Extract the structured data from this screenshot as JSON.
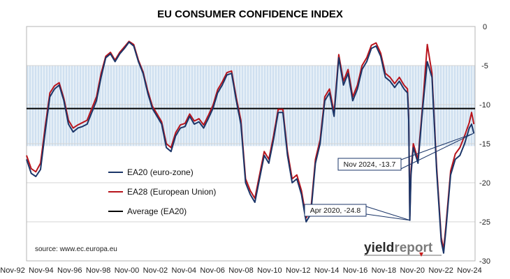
{
  "chart_data": {
    "type": "line",
    "title": "EU CONSUMER CONFIDENCE INDEX",
    "x_tick_labels": [
      "Nov-92",
      "Nov-94",
      "Nov-96",
      "Nov-98",
      "Nov-00",
      "Nov-02",
      "Nov-04",
      "Nov-06",
      "Nov-08",
      "Nov-10",
      "Nov-12",
      "Nov-14",
      "Nov-16",
      "Nov-18",
      "Nov-20",
      "Nov-22",
      "Nov-24"
    ],
    "y_ticks": [
      0,
      -5,
      -10,
      -15,
      -20,
      -25,
      -30
    ],
    "y_axis_side": "right",
    "ylim": [
      -30,
      0
    ],
    "xlim": [
      "1992-11",
      "2024-12"
    ],
    "band": {
      "from": -15.3,
      "to": -5.0,
      "color": "#cfe0f0"
    },
    "average": {
      "label": "Average (EA20)",
      "value": -10.5,
      "color": "#000000"
    },
    "series": [
      {
        "name": "EA20 (euro-zone)",
        "color": "#1b3568",
        "points": [
          [
            "1992-11",
            -17.0
          ],
          [
            "1993-03",
            -18.8
          ],
          [
            "1993-07",
            -19.2
          ],
          [
            "1993-11",
            -18.3
          ],
          [
            "1994-03",
            -13.5
          ],
          [
            "1994-07",
            -9.0
          ],
          [
            "1994-11",
            -8.0
          ],
          [
            "1995-03",
            -7.5
          ],
          [
            "1995-07",
            -9.5
          ],
          [
            "1995-11",
            -12.5
          ],
          [
            "1996-03",
            -13.5
          ],
          [
            "1996-07",
            -13.0
          ],
          [
            "1996-11",
            -12.8
          ],
          [
            "1997-03",
            -12.5
          ],
          [
            "1997-07",
            -11.0
          ],
          [
            "1997-11",
            -9.5
          ],
          [
            "1998-03",
            -6.5
          ],
          [
            "1998-07",
            -4.0
          ],
          [
            "1998-11",
            -3.5
          ],
          [
            "1999-03",
            -4.5
          ],
          [
            "1999-07",
            -3.5
          ],
          [
            "1999-11",
            -2.8
          ],
          [
            "2000-03",
            -2.0
          ],
          [
            "2000-07",
            -2.5
          ],
          [
            "2000-11",
            -4.5
          ],
          [
            "2001-03",
            -6.0
          ],
          [
            "2001-07",
            -8.5
          ],
          [
            "2001-11",
            -10.5
          ],
          [
            "2002-03",
            -11.5
          ],
          [
            "2002-07",
            -12.5
          ],
          [
            "2002-11",
            -15.5
          ],
          [
            "2003-03",
            -16.0
          ],
          [
            "2003-07",
            -14.0
          ],
          [
            "2003-11",
            -13.0
          ],
          [
            "2004-03",
            -12.8
          ],
          [
            "2004-07",
            -11.5
          ],
          [
            "2004-11",
            -12.5
          ],
          [
            "2005-03",
            -12.2
          ],
          [
            "2005-07",
            -13.0
          ],
          [
            "2005-11",
            -11.8
          ],
          [
            "2006-03",
            -10.5
          ],
          [
            "2006-07",
            -8.5
          ],
          [
            "2006-11",
            -7.5
          ],
          [
            "2007-03",
            -6.2
          ],
          [
            "2007-07",
            -6.0
          ],
          [
            "2007-11",
            -9.5
          ],
          [
            "2008-03",
            -12.5
          ],
          [
            "2008-07",
            -20.0
          ],
          [
            "2008-11",
            -21.5
          ],
          [
            "2009-03",
            -22.5
          ],
          [
            "2009-07",
            -19.5
          ],
          [
            "2009-11",
            -16.5
          ],
          [
            "2010-03",
            -17.5
          ],
          [
            "2010-07",
            -14.5
          ],
          [
            "2010-11",
            -11.0
          ],
          [
            "2011-03",
            -11.0
          ],
          [
            "2011-07",
            -16.5
          ],
          [
            "2011-11",
            -20.0
          ],
          [
            "2012-03",
            -19.5
          ],
          [
            "2012-07",
            -21.5
          ],
          [
            "2012-11",
            -25.0
          ],
          [
            "2013-03",
            -24.0
          ],
          [
            "2013-07",
            -17.5
          ],
          [
            "2013-11",
            -15.0
          ],
          [
            "2014-03",
            -9.5
          ],
          [
            "2014-07",
            -8.5
          ],
          [
            "2014-11",
            -11.5
          ],
          [
            "2015-03",
            -4.0
          ],
          [
            "2015-07",
            -7.5
          ],
          [
            "2015-11",
            -6.0
          ],
          [
            "2016-03",
            -9.5
          ],
          [
            "2016-07",
            -8.0
          ],
          [
            "2016-11",
            -5.5
          ],
          [
            "2017-03",
            -4.5
          ],
          [
            "2017-07",
            -2.8
          ],
          [
            "2017-11",
            -2.5
          ],
          [
            "2018-03",
            -3.8
          ],
          [
            "2018-07",
            -6.5
          ],
          [
            "2018-11",
            -7.0
          ],
          [
            "2019-03",
            -7.8
          ],
          [
            "2019-07",
            -7.0
          ],
          [
            "2019-11",
            -8.0
          ],
          [
            "2020-02",
            -8.5
          ],
          [
            "2020-03",
            -12.0
          ],
          [
            "2020-04",
            -24.8
          ],
          [
            "2020-05",
            -19.0
          ],
          [
            "2020-07",
            -15.5
          ],
          [
            "2020-11",
            -17.5
          ],
          [
            "2021-03",
            -10.5
          ],
          [
            "2021-07",
            -4.5
          ],
          [
            "2021-11",
            -6.5
          ],
          [
            "2022-03",
            -18.5
          ],
          [
            "2022-07",
            -27.5
          ],
          [
            "2022-09",
            -29.0
          ],
          [
            "2022-11",
            -26.0
          ],
          [
            "2023-03",
            -19.0
          ],
          [
            "2023-07",
            -17.0
          ],
          [
            "2023-11",
            -16.5
          ],
          [
            "2024-03",
            -15.0
          ],
          [
            "2024-07",
            -13.0
          ],
          [
            "2024-09",
            -12.5
          ],
          [
            "2024-11",
            -13.7
          ]
        ]
      },
      {
        "name": "EA28 (European Union)",
        "color": "#b8141c",
        "points": [
          [
            "1992-11",
            -16.5
          ],
          [
            "1993-03",
            -18.2
          ],
          [
            "1993-07",
            -18.6
          ],
          [
            "1993-11",
            -17.5
          ],
          [
            "1994-03",
            -12.8
          ],
          [
            "1994-07",
            -8.5
          ],
          [
            "1994-11",
            -7.6
          ],
          [
            "1995-03",
            -7.2
          ],
          [
            "1995-07",
            -9.2
          ],
          [
            "1995-11",
            -12.0
          ],
          [
            "1996-03",
            -13.0
          ],
          [
            "1996-07",
            -12.6
          ],
          [
            "1996-11",
            -12.3
          ],
          [
            "1997-03",
            -12.0
          ],
          [
            "1997-07",
            -10.5
          ],
          [
            "1997-11",
            -9.0
          ],
          [
            "1998-03",
            -6.0
          ],
          [
            "1998-07",
            -3.8
          ],
          [
            "1998-11",
            -3.3
          ],
          [
            "1999-03",
            -4.3
          ],
          [
            "1999-07",
            -3.3
          ],
          [
            "1999-11",
            -2.6
          ],
          [
            "2000-03",
            -1.9
          ],
          [
            "2000-07",
            -2.3
          ],
          [
            "2000-11",
            -4.3
          ],
          [
            "2001-03",
            -5.8
          ],
          [
            "2001-07",
            -8.2
          ],
          [
            "2001-11",
            -10.2
          ],
          [
            "2002-03",
            -11.2
          ],
          [
            "2002-07",
            -12.2
          ],
          [
            "2002-11",
            -15.0
          ],
          [
            "2003-03",
            -15.5
          ],
          [
            "2003-07",
            -13.6
          ],
          [
            "2003-11",
            -12.6
          ],
          [
            "2004-03",
            -12.4
          ],
          [
            "2004-07",
            -11.2
          ],
          [
            "2004-11",
            -12.1
          ],
          [
            "2005-03",
            -11.8
          ],
          [
            "2005-07",
            -12.6
          ],
          [
            "2005-11",
            -11.4
          ],
          [
            "2006-03",
            -10.1
          ],
          [
            "2006-07",
            -8.1
          ],
          [
            "2006-11",
            -7.1
          ],
          [
            "2007-03",
            -5.9
          ],
          [
            "2007-07",
            -5.7
          ],
          [
            "2007-11",
            -9.1
          ],
          [
            "2008-03",
            -12.0
          ],
          [
            "2008-07",
            -19.5
          ],
          [
            "2008-11",
            -21.0
          ],
          [
            "2009-03",
            -22.0
          ],
          [
            "2009-07",
            -19.0
          ],
          [
            "2009-11",
            -16.0
          ],
          [
            "2010-03",
            -17.0
          ],
          [
            "2010-07",
            -14.0
          ],
          [
            "2010-11",
            -10.6
          ],
          [
            "2011-03",
            -10.6
          ],
          [
            "2011-07",
            -16.0
          ],
          [
            "2011-11",
            -19.5
          ],
          [
            "2012-03",
            -19.0
          ],
          [
            "2012-07",
            -21.0
          ],
          [
            "2012-11",
            -24.5
          ],
          [
            "2013-03",
            -23.5
          ],
          [
            "2013-07",
            -17.0
          ],
          [
            "2013-11",
            -14.5
          ],
          [
            "2014-03",
            -9.0
          ],
          [
            "2014-07",
            -8.0
          ],
          [
            "2014-11",
            -11.0
          ],
          [
            "2015-03",
            -3.6
          ],
          [
            "2015-07",
            -7.0
          ],
          [
            "2015-11",
            -5.5
          ],
          [
            "2016-03",
            -9.0
          ],
          [
            "2016-07",
            -7.5
          ],
          [
            "2016-11",
            -5.0
          ],
          [
            "2017-03",
            -4.0
          ],
          [
            "2017-07",
            -2.4
          ],
          [
            "2017-11",
            -2.1
          ],
          [
            "2018-03",
            -3.4
          ],
          [
            "2018-07",
            -6.0
          ],
          [
            "2018-11",
            -6.5
          ],
          [
            "2019-03",
            -7.3
          ],
          [
            "2019-07",
            -6.5
          ],
          [
            "2019-11",
            -7.5
          ],
          [
            "2020-02",
            -8.0
          ],
          [
            "2020-03",
            -11.5
          ],
          [
            "2020-04",
            -24.3
          ],
          [
            "2020-05",
            -18.5
          ],
          [
            "2020-07",
            -15.0
          ],
          [
            "2020-11",
            -17.0
          ],
          [
            "2021-03",
            -10.0
          ],
          [
            "2021-07",
            -2.3
          ],
          [
            "2021-11",
            -6.0
          ],
          [
            "2022-03",
            -18.0
          ],
          [
            "2022-07",
            -27.0
          ],
          [
            "2022-09",
            -28.5
          ],
          [
            "2022-11",
            -25.5
          ],
          [
            "2023-03",
            -18.5
          ],
          [
            "2023-07",
            -16.3
          ],
          [
            "2023-11",
            -15.5
          ],
          [
            "2024-03",
            -14.0
          ],
          [
            "2024-07",
            -12.3
          ],
          [
            "2024-09",
            -11.0
          ],
          [
            "2024-11",
            -12.5
          ]
        ]
      }
    ],
    "legend": [
      {
        "label": "EA20 (euro-zone)",
        "color": "#1b3568"
      },
      {
        "label": "EA28 (European Union)",
        "color": "#b8141c"
      },
      {
        "label": "Average (EA20)",
        "color": "#000000"
      }
    ],
    "legend_position": "lower-left",
    "annotations": [
      {
        "label": "Nov 2024, -13.7",
        "date": "2024-11",
        "value": -13.7
      },
      {
        "label": "Apr 2020, -24.8",
        "date": "2020-04",
        "value": -24.8
      }
    ],
    "source": "source: www.ec.europa.eu",
    "grid": true
  },
  "branding": {
    "part1": "yield",
    "part2": "report"
  }
}
